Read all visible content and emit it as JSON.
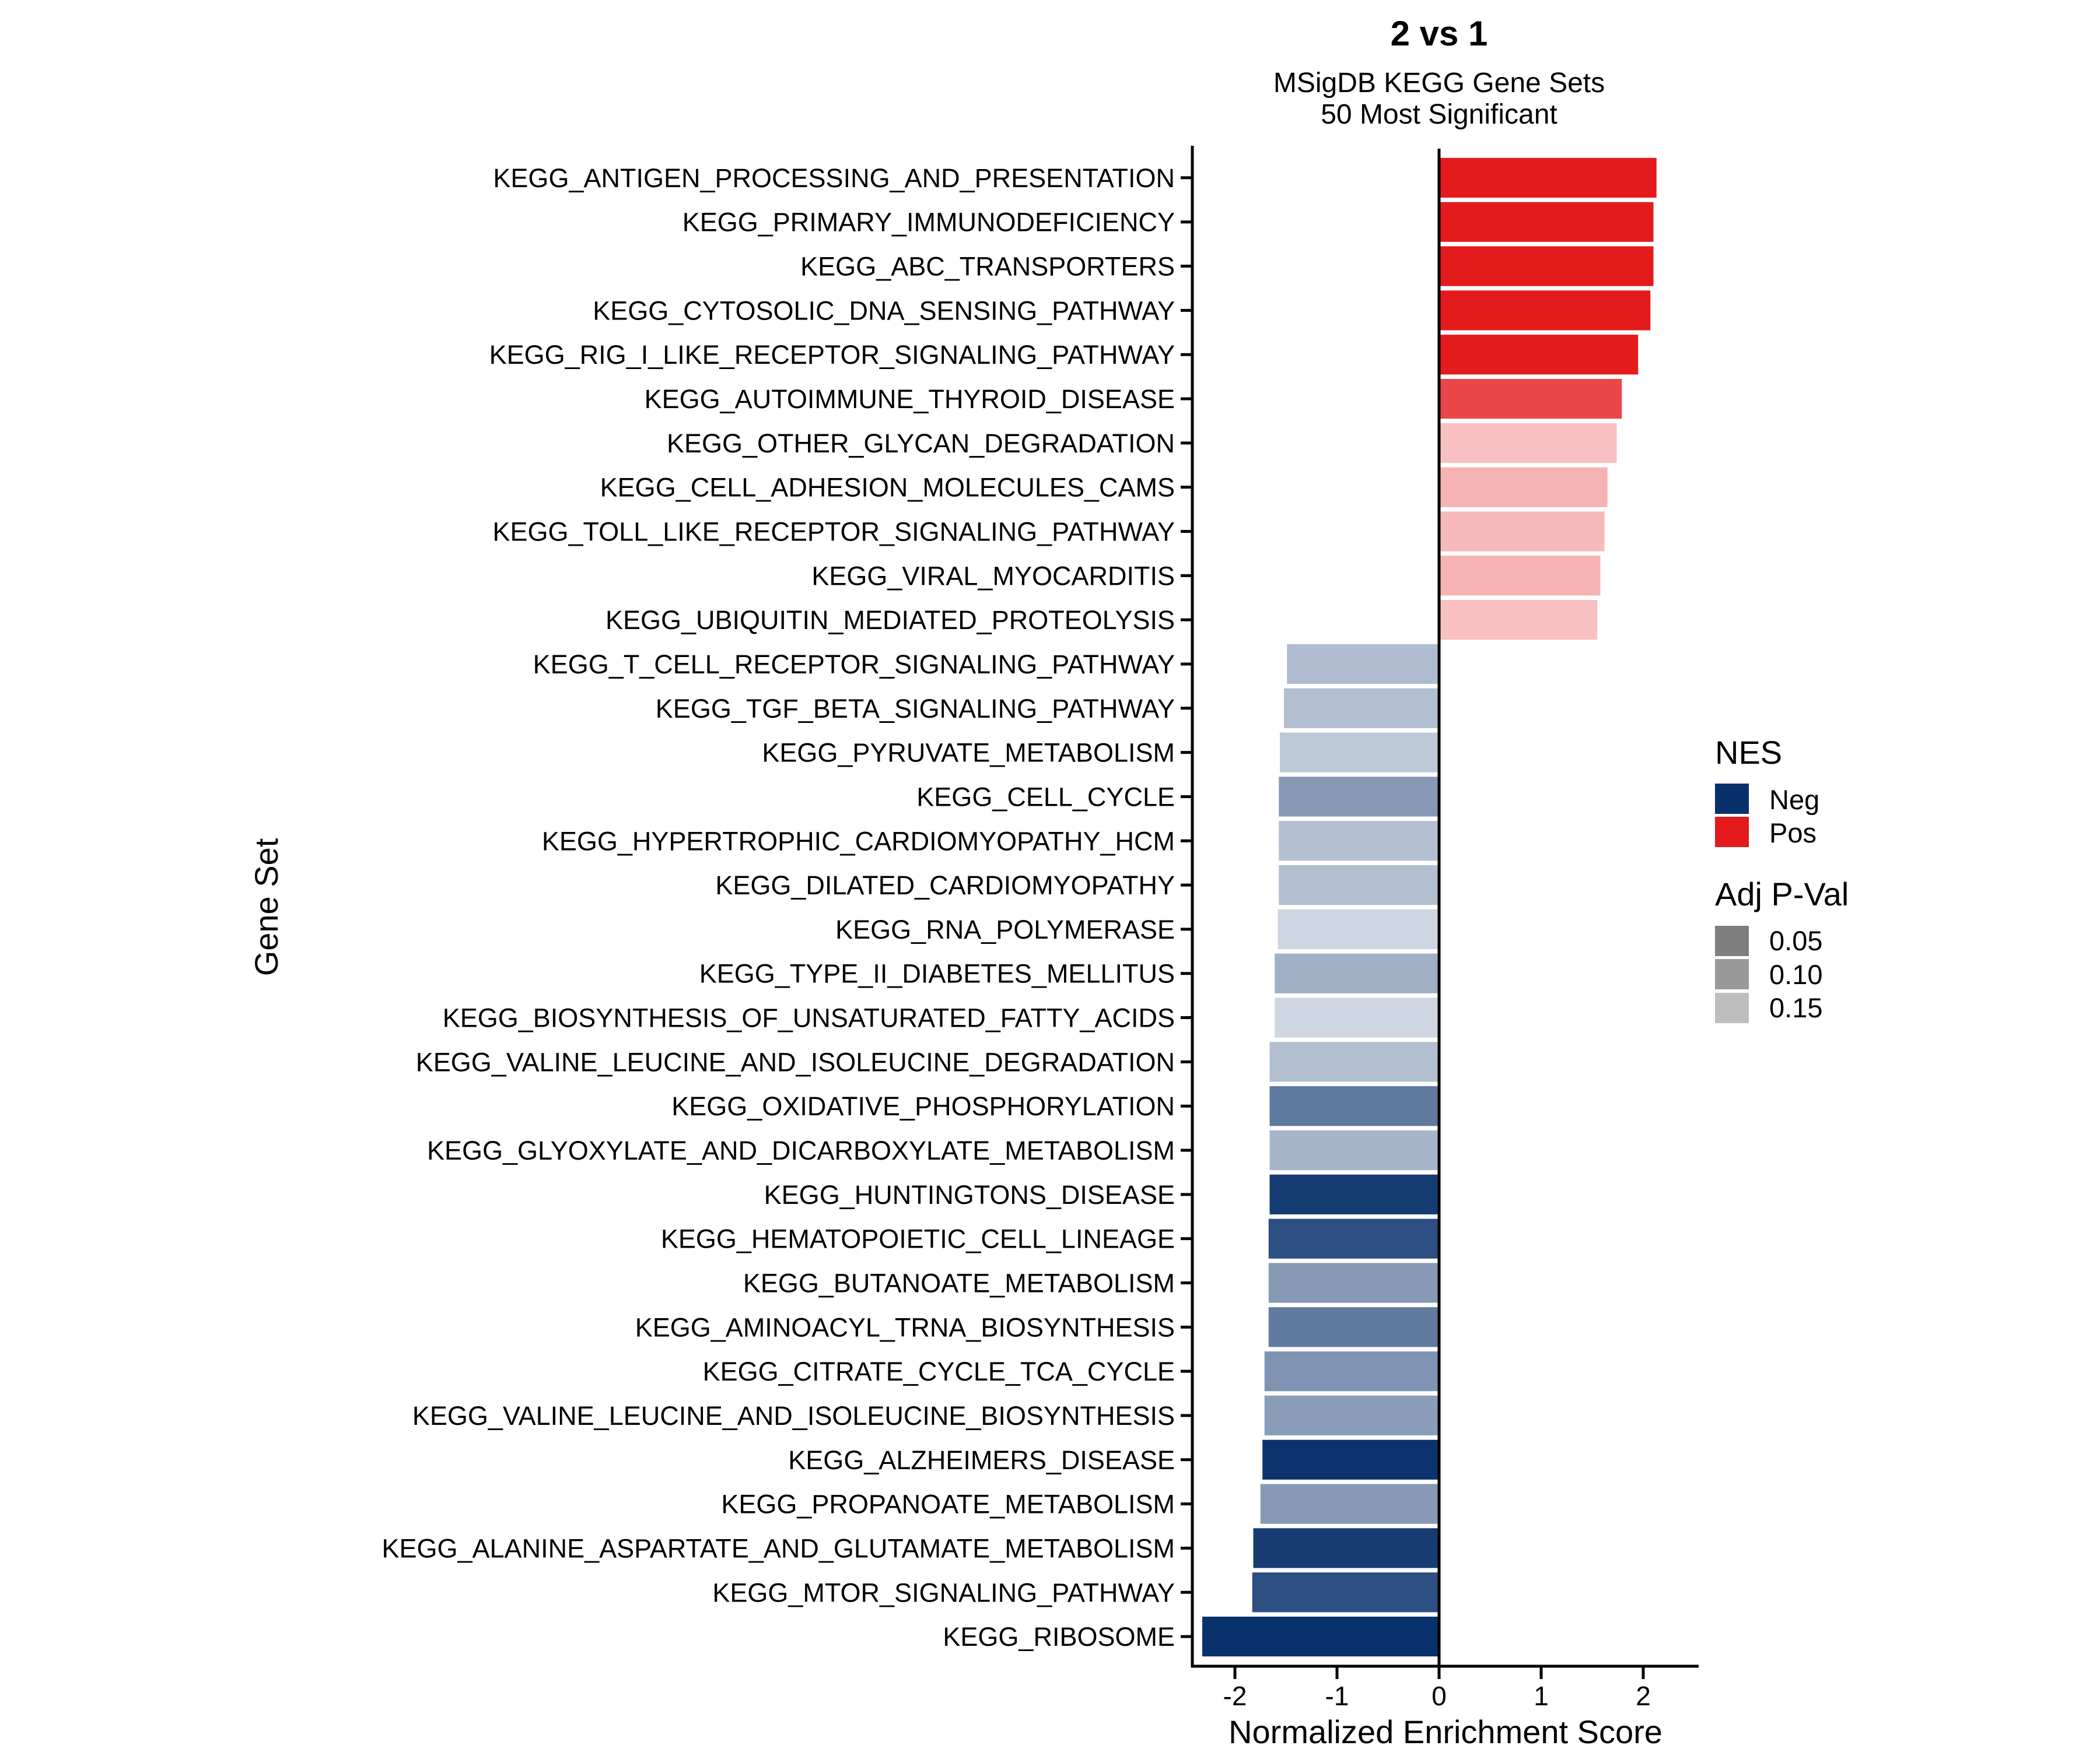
{
  "chart_data": {
    "type": "bar",
    "orientation": "horizontal",
    "title": "2 vs 1",
    "subtitle": [
      "MSigDB KEGG Gene Sets",
      "50 Most Significant"
    ],
    "xlabel": "Normalized Enrichment Score",
    "ylabel": "Gene Set",
    "xlim": [
      -2.42,
      2.54
    ],
    "xticks": [
      -2,
      -1,
      0,
      1,
      2
    ],
    "xtick_labels": [
      "-2",
      "-1",
      "0",
      "1",
      "2"
    ],
    "grid": false,
    "colors": {
      "Neg": "#08306B",
      "Pos": "#E41A1C"
    },
    "legend": {
      "placement": "right",
      "fill_title": "NES",
      "fill_items": [
        {
          "label": "Neg",
          "color": "#08306B"
        },
        {
          "label": "Pos",
          "color": "#E41A1C"
        }
      ],
      "alpha_title": "Adj P-Val",
      "alpha_items": [
        {
          "label": "0.05",
          "color": "#7F7F7F"
        },
        {
          "label": "0.10",
          "color": "#999999"
        },
        {
          "label": "0.15",
          "color": "#BEBEBE"
        }
      ]
    },
    "bars": [
      {
        "name": "KEGG_ANTIGEN_PROCESSING_AND_PRESENTATION",
        "nes": 2.13,
        "padj": 0.001
      },
      {
        "name": "KEGG_PRIMARY_IMMUNODEFICIENCY",
        "nes": 2.1,
        "padj": 0.001
      },
      {
        "name": "KEGG_ABC_TRANSPORTERS",
        "nes": 2.1,
        "padj": 0.001
      },
      {
        "name": "KEGG_CYTOSOLIC_DNA_SENSING_PATHWAY",
        "nes": 2.07,
        "padj": 0.001
      },
      {
        "name": "KEGG_RIG_I_LIKE_RECEPTOR_SIGNALING_PATHWAY",
        "nes": 1.95,
        "padj": 0.001
      },
      {
        "name": "KEGG_AUTOIMMUNE_THYROID_DISEASE",
        "nes": 1.79,
        "padj": 0.044
      },
      {
        "name": "KEGG_OTHER_GLYCAN_DEGRADATION",
        "nes": 1.74,
        "padj": 0.161
      },
      {
        "name": "KEGG_CELL_ADHESION_MOLECULES_CAMS",
        "nes": 1.65,
        "padj": 0.148
      },
      {
        "name": "KEGG_TOLL_LIKE_RECEPTOR_SIGNALING_PATHWAY",
        "nes": 1.62,
        "padj": 0.155
      },
      {
        "name": "KEGG_VIRAL_MYOCARDITIS",
        "nes": 1.58,
        "padj": 0.148
      },
      {
        "name": "KEGG_UBIQUITIN_MEDIATED_PROTEOLYSIS",
        "nes": 1.55,
        "padj": 0.161
      },
      {
        "name": "KEGG_T_CELL_RECEPTOR_SIGNALING_PATHWAY",
        "nes": -1.49,
        "padj": 0.15
      },
      {
        "name": "KEGG_TGF_BETA_SIGNALING_PATHWAY",
        "nes": -1.52,
        "padj": 0.153
      },
      {
        "name": "KEGG_PYRUVATE_METABOLISM",
        "nes": -1.56,
        "padj": 0.164
      },
      {
        "name": "KEGG_CELL_CYCLE",
        "nes": -1.57,
        "padj": 0.113
      },
      {
        "name": "KEGG_HYPERTROPHIC_CARDIOMYOPATHY_HCM",
        "nes": -1.57,
        "padj": 0.155
      },
      {
        "name": "KEGG_DILATED_CARDIOMYOPATHY",
        "nes": -1.57,
        "padj": 0.153
      },
      {
        "name": "KEGG_RNA_POLYMERASE",
        "nes": -1.58,
        "padj": 0.178
      },
      {
        "name": "KEGG_TYPE_II_DIABETES_MELLITUS",
        "nes": -1.61,
        "padj": 0.137
      },
      {
        "name": "KEGG_BIOSYNTHESIS_OF_UNSATURATED_FATTY_ACIDS",
        "nes": -1.61,
        "padj": 0.178
      },
      {
        "name": "KEGG_VALINE_LEUCINE_AND_ISOLEUCINE_DEGRADATION",
        "nes": -1.66,
        "padj": 0.153
      },
      {
        "name": "KEGG_OXIDATIVE_PHOSPHORYLATION",
        "nes": -1.66,
        "padj": 0.078
      },
      {
        "name": "KEGG_GLYOXYLATE_AND_DICARBOXYLATE_METABOLISM",
        "nes": -1.66,
        "padj": 0.143
      },
      {
        "name": "KEGG_HUNTINGTONS_DISEASE",
        "nes": -1.66,
        "padj": 0.011
      },
      {
        "name": "KEGG_HEMATOPOIETIC_CELL_LINEAGE",
        "nes": -1.67,
        "padj": 0.033
      },
      {
        "name": "KEGG_BUTANOATE_METABOLISM",
        "nes": -1.67,
        "padj": 0.113
      },
      {
        "name": "KEGG_AMINOACYL_TRNA_BIOSYNTHESIS",
        "nes": -1.67,
        "padj": 0.079
      },
      {
        "name": "KEGG_CITRATE_CYCLE_TCA_CYCLE",
        "nes": -1.71,
        "padj": 0.107
      },
      {
        "name": "KEGG_VALINE_LEUCINE_AND_ISOLEUCINE_BIOSYNTHESIS",
        "nes": -1.71,
        "padj": 0.117
      },
      {
        "name": "KEGG_ALZHEIMERS_DISEASE",
        "nes": -1.73,
        "padj": 0.003
      },
      {
        "name": "KEGG_PROPANOATE_METABOLISM",
        "nes": -1.75,
        "padj": 0.113
      },
      {
        "name": "KEGG_ALANINE_ASPARTATE_AND_GLUTAMATE_METABOLISM",
        "nes": -1.82,
        "padj": 0.013
      },
      {
        "name": "KEGG_MTOR_SIGNALING_PATHWAY",
        "nes": -1.83,
        "padj": 0.033
      },
      {
        "name": "KEGG_RIBOSOME",
        "nes": -2.32,
        "padj": 0.001
      }
    ]
  }
}
